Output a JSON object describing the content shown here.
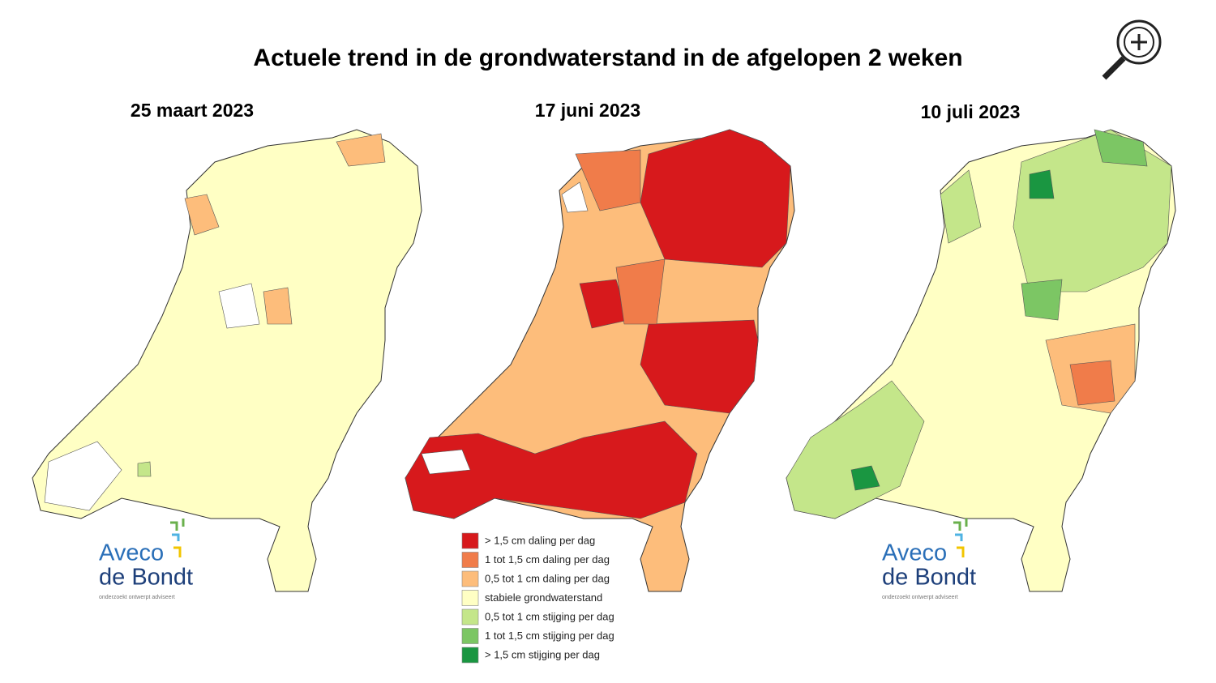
{
  "header": {
    "title": "Actuele trend in de grondwaterstand in de afgelopen 2 weken"
  },
  "maps": [
    {
      "date": "25 maart 2023"
    },
    {
      "date": "17 juni 2023"
    },
    {
      "date": "10 juli 2023"
    }
  ],
  "legend": {
    "items": [
      {
        "label": "> 1,5 cm daling per dag",
        "color": "#d7191c"
      },
      {
        "label": "1 tot 1,5 cm daling per dag",
        "color": "#f07c4a"
      },
      {
        "label": "0,5 tot 1 cm daling per dag",
        "color": "#fdbd7b"
      },
      {
        "label": "stabiele grondwaterstand",
        "color": "#ffffc4"
      },
      {
        "label": "0,5 tot 1 cm stijging per dag",
        "color": "#c4e68a"
      },
      {
        "label": "1 tot 1,5 cm stijging per dag",
        "color": "#7cc664"
      },
      {
        "label": "> 1,5 cm stijging per dag",
        "color": "#1a9641"
      }
    ]
  },
  "logo": {
    "line1": "Aveco",
    "line2": "de Bondt",
    "tagline": "onderzoekt  ontwerpt  adviseert"
  }
}
